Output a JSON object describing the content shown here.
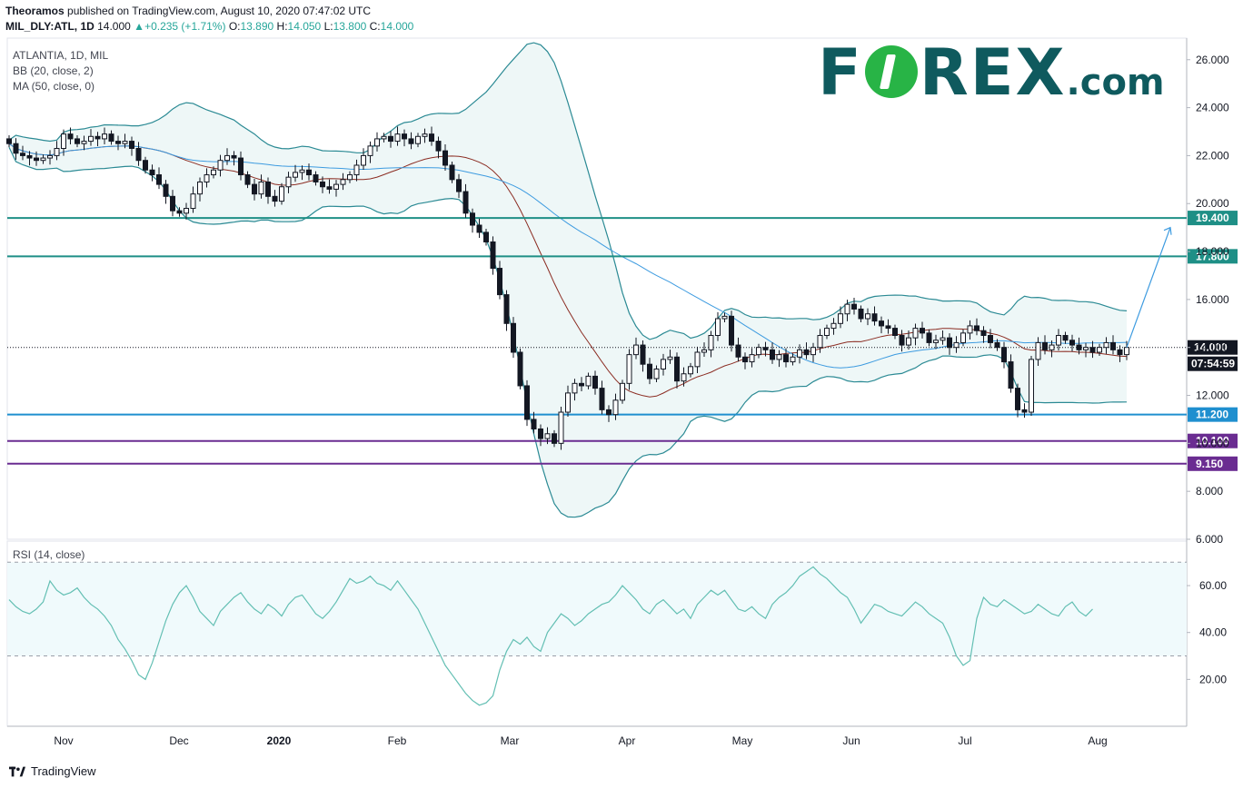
{
  "header": {
    "publisher": "Theoramos",
    "published_text": "published on TradingView.com, August 10, 2020 07:47:02 UTC",
    "symbol": "MIL_DLY:ATL, 1D",
    "last": "14.000",
    "change": "+0.235 (+1.71%)",
    "o_label": "O:",
    "o": "13.890",
    "h_label": "H:",
    "h": "14.050",
    "l_label": "L:",
    "l": "13.800",
    "c_label": "C:",
    "c": "14.000"
  },
  "legend": {
    "title": "ATLANTIA, 1D, MIL",
    "bb": "BB (20, close, 2)",
    "ma": "MA (50, close, 0)",
    "rsi": "RSI (14, close)"
  },
  "logo": {
    "text_before": "F",
    "text_after": "REX",
    "suffix": ".com"
  },
  "footer": {
    "brand": "TradingView"
  },
  "countdown": "07:54:59",
  "colors": {
    "up": "#26a69a",
    "teal_line": "#1e8f86",
    "blue_line": "#1f8fcf",
    "purple_line": "#6a2c91",
    "bb_fill": "#eef7f7",
    "bb_line": "#2b8a94",
    "ma_line": "#3d9be0",
    "mid_line": "#8b2c22",
    "rsi_line": "#63bfb3",
    "rsi_band": "#f0fafc"
  },
  "chart_data": [
    {
      "type": "candlestick",
      "title": "ATLANTIA, 1D, MIL",
      "y_ticks": [
        "26.000",
        "24.000",
        "22.000",
        "20.000",
        "18.000",
        "16.000",
        "14.000",
        "12.000",
        "10.000",
        "8.000",
        "6.000"
      ],
      "ylim": [
        6,
        26.9
      ],
      "x_ticks": [
        "Nov",
        "Dec",
        "2020",
        "Feb",
        "Mar",
        "Apr",
        "May",
        "Jun",
        "Jul",
        "Aug"
      ],
      "levels": [
        {
          "label": "19.400",
          "value": 19.4,
          "color": "#1e8f86"
        },
        {
          "label": "17.800",
          "value": 17.8,
          "color": "#1e8f86"
        },
        {
          "label": "11.200",
          "value": 11.2,
          "color": "#1f8fcf"
        },
        {
          "label": "10.100",
          "value": 10.1,
          "color": "#6a2c91"
        },
        {
          "label": "9.150",
          "value": 9.15,
          "color": "#6a2c91"
        }
      ],
      "last_price": {
        "label": "14.000",
        "value": 14.0
      },
      "projection": {
        "from": [
          299,
          14.0
        ],
        "to": [
          303,
          19.0
        ]
      },
      "close_series": [
        22.5,
        22.1,
        22.0,
        21.9,
        21.8,
        21.9,
        22.0,
        22.3,
        22.9,
        22.7,
        22.5,
        22.6,
        22.8,
        22.7,
        22.9,
        22.6,
        22.5,
        22.6,
        22.3,
        21.8,
        21.4,
        21.2,
        20.8,
        20.3,
        19.7,
        19.6,
        19.8,
        20.4,
        20.9,
        21.2,
        21.4,
        21.8,
        22.0,
        21.9,
        21.2,
        20.8,
        20.4,
        20.9,
        20.3,
        20.1,
        20.7,
        21.1,
        21.3,
        21.4,
        21.2,
        20.9,
        20.7,
        20.6,
        20.8,
        21.0,
        21.2,
        21.6,
        22.0,
        22.4,
        22.7,
        22.8,
        22.6,
        22.9,
        22.7,
        22.5,
        22.8,
        22.9,
        22.6,
        22.2,
        21.6,
        21.0,
        20.5,
        19.6,
        19.1,
        18.8,
        18.4,
        17.3,
        16.2,
        15.0,
        13.8,
        12.4,
        11.0,
        10.6,
        10.2,
        10.4,
        10.0,
        11.3,
        12.1,
        12.5,
        12.4,
        12.8,
        12.3,
        11.4,
        11.2,
        11.8,
        12.5,
        13.7,
        14.1,
        13.3,
        12.7,
        13.1,
        13.5,
        13.6,
        12.6,
        12.9,
        13.2,
        13.8,
        13.9,
        14.5,
        15.2,
        15.3,
        14.1,
        13.6,
        13.4,
        13.7,
        14.0,
        13.9,
        13.5,
        13.7,
        13.4,
        13.6,
        13.9,
        13.7,
        14.0,
        14.5,
        14.8,
        15.0,
        15.4,
        15.8,
        15.6,
        15.2,
        15.4,
        15.1,
        14.9,
        14.8,
        14.5,
        14.1,
        14.4,
        14.8,
        14.6,
        14.2,
        14.3,
        14.4,
        14.0,
        14.2,
        14.6,
        14.9,
        14.7,
        14.5,
        14.2,
        14.0,
        13.4,
        12.3,
        11.4,
        11.3,
        13.5,
        14.2,
        13.9,
        14.1,
        14.5,
        14.3,
        14.1,
        13.9,
        14.0,
        13.8,
        14.0,
        14.2,
        13.9,
        13.7,
        14.0
      ]
    },
    {
      "type": "line",
      "title": "RSI (14, close)",
      "y_ticks": [
        "60.00",
        "40.00",
        "20.00"
      ],
      "ylim": [
        0,
        79
      ],
      "bands": [
        30,
        70
      ],
      "values": [
        54,
        51,
        49,
        48,
        50,
        53,
        62,
        58,
        56,
        57,
        59,
        55,
        52,
        50,
        47,
        43,
        37,
        33,
        28,
        22,
        20,
        27,
        36,
        45,
        52,
        57,
        60,
        55,
        49,
        46,
        43,
        49,
        52,
        55,
        57,
        53,
        50,
        48,
        52,
        50,
        47,
        52,
        55,
        56,
        52,
        48,
        46,
        49,
        53,
        58,
        63,
        61,
        62,
        64,
        61,
        60,
        58,
        62,
        58,
        54,
        50,
        44,
        38,
        32,
        26,
        22,
        18,
        14,
        11,
        9,
        10,
        13,
        24,
        32,
        37,
        35,
        38,
        34,
        32,
        40,
        44,
        48,
        46,
        43,
        45,
        48,
        50,
        52,
        53,
        56,
        60,
        57,
        54,
        50,
        48,
        52,
        54,
        51,
        48,
        50,
        46,
        52,
        55,
        58,
        56,
        58,
        54,
        50,
        49,
        51,
        48,
        46,
        52,
        55,
        57,
        60,
        64,
        66,
        68,
        65,
        63,
        60,
        57,
        55,
        50,
        44,
        48,
        52,
        51,
        49,
        48,
        47,
        50,
        53,
        51,
        48,
        46,
        44,
        38,
        30,
        26,
        28,
        46,
        55,
        52,
        51,
        54,
        52,
        50,
        48,
        49,
        52,
        50,
        48,
        47,
        51,
        53,
        49,
        47,
        50
      ]
    }
  ]
}
